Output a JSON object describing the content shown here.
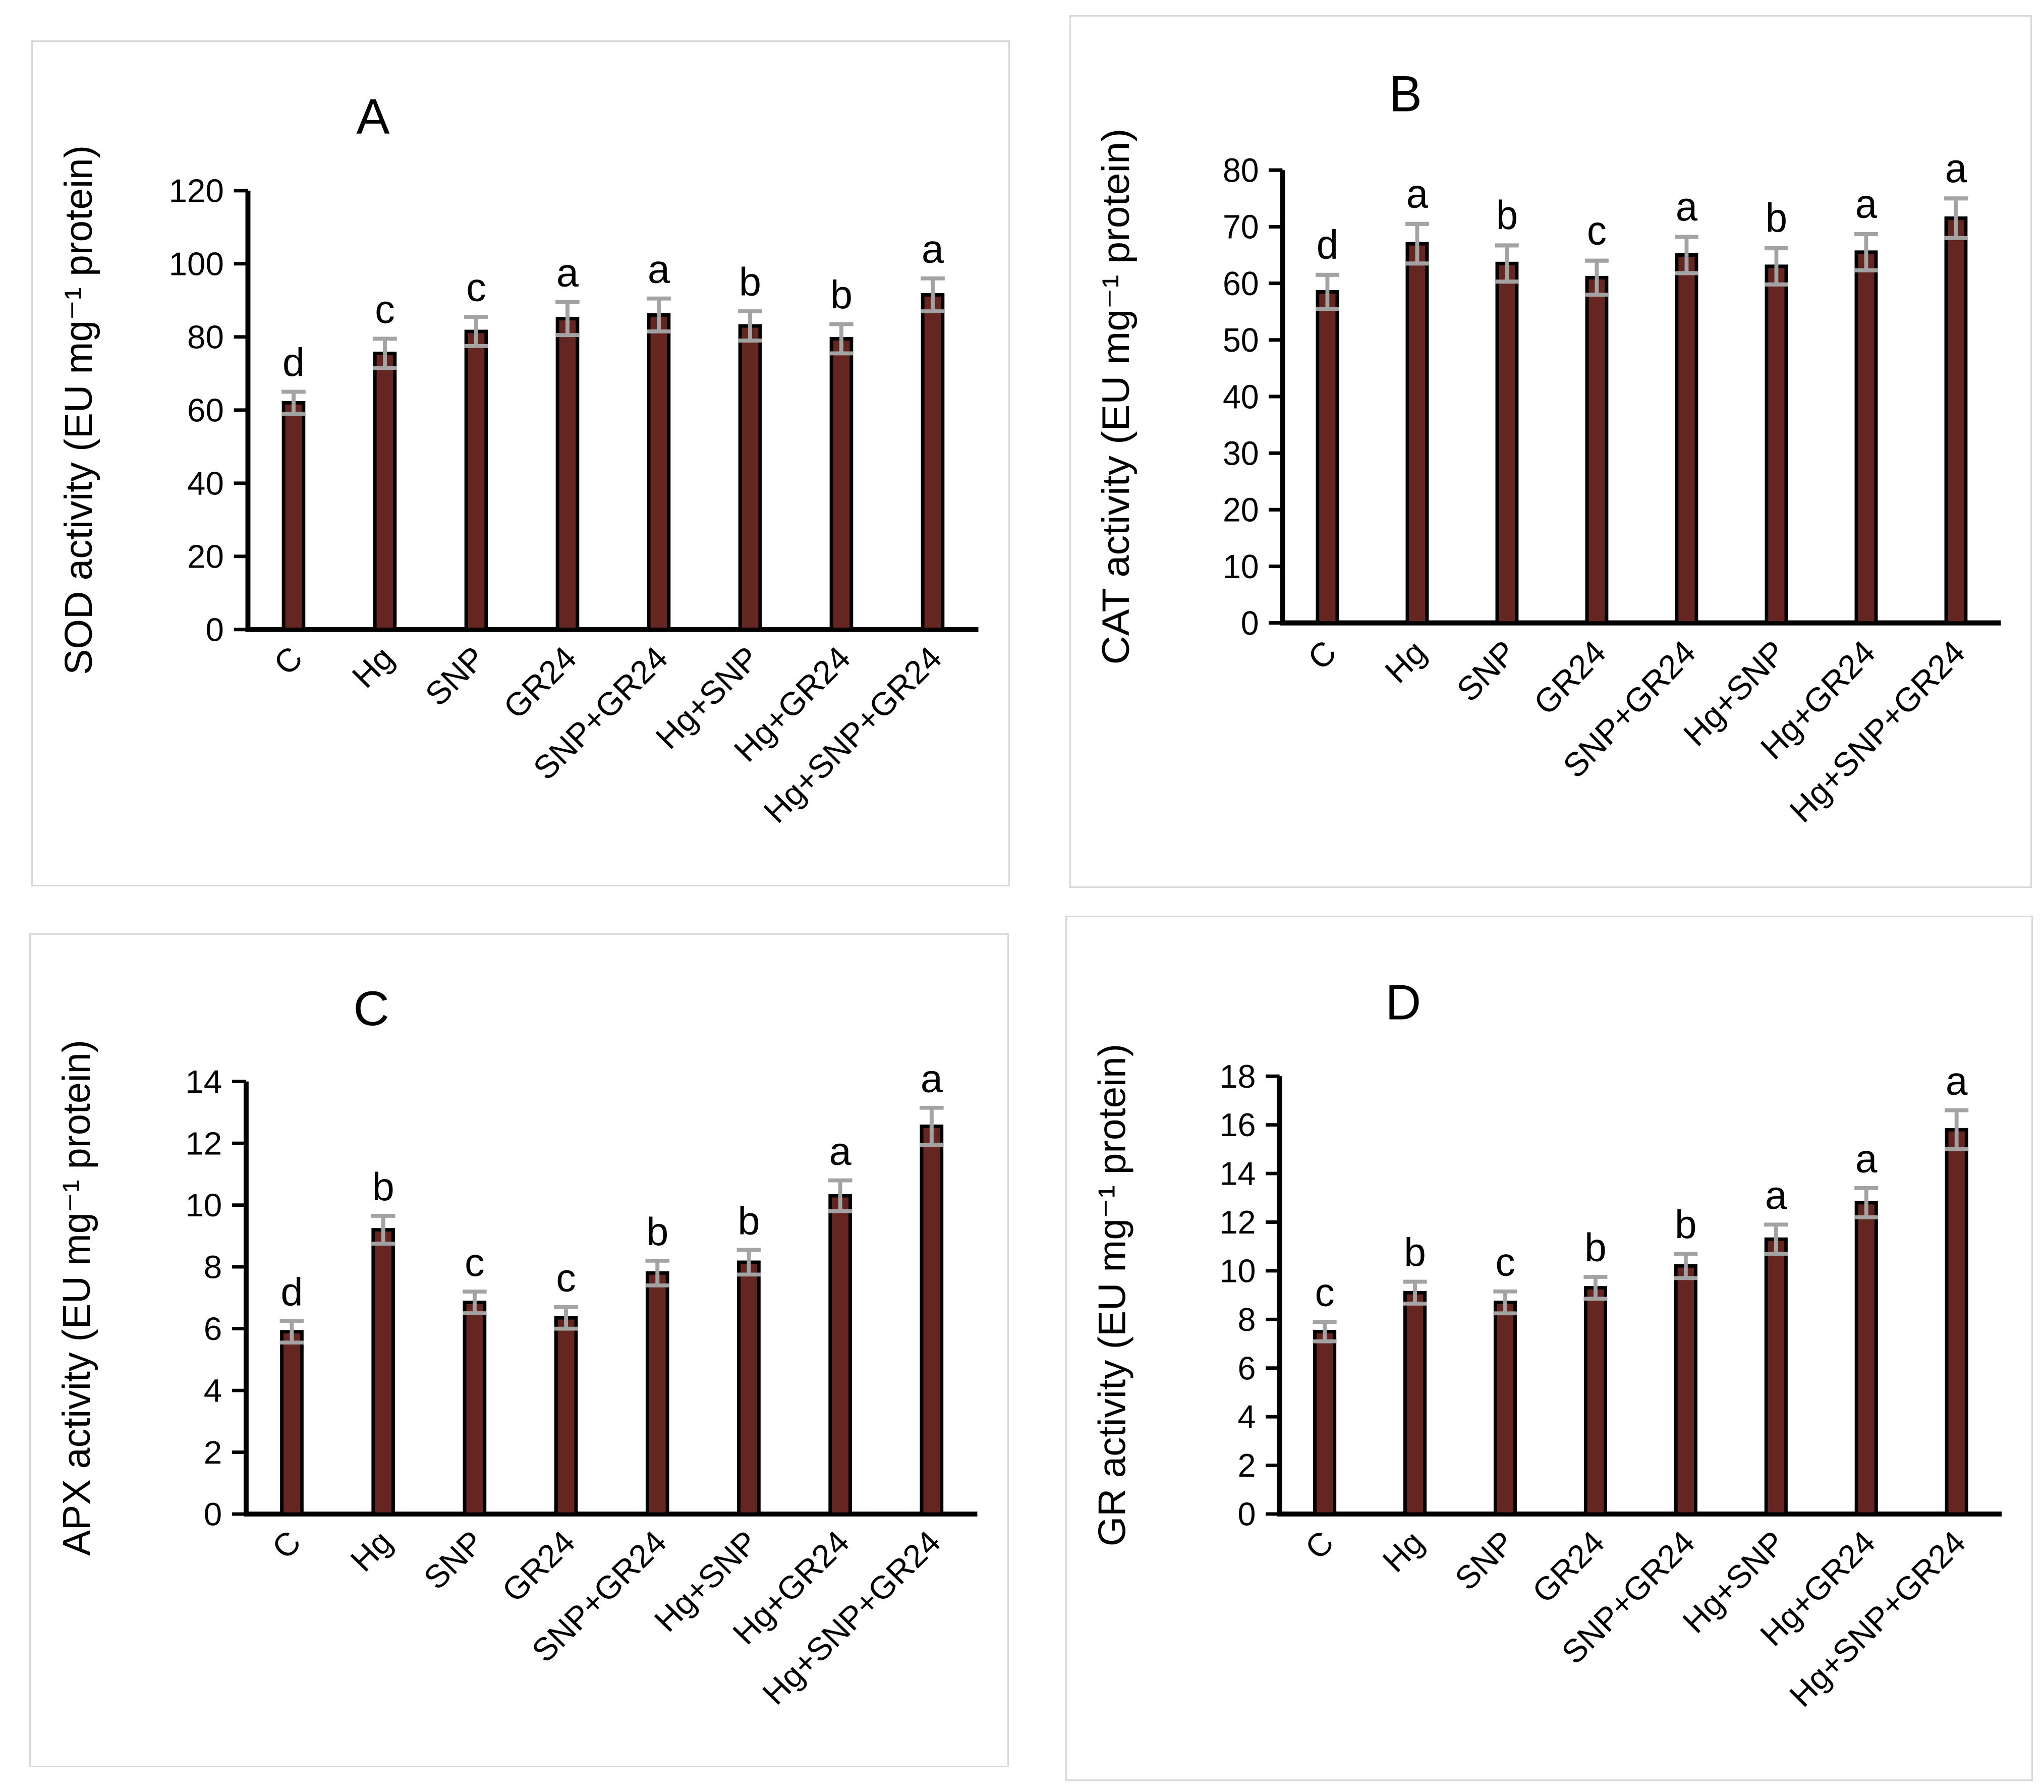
{
  "figure": {
    "background": "#ffffff",
    "panel_border_color": "#d9d9d9"
  },
  "colors": {
    "bar_fill": "#652622",
    "bar_border": "#000000",
    "error_bar": "#a3a3a3",
    "axis": "#000000",
    "text": "#000000"
  },
  "categories": [
    "C",
    "Hg",
    "SNP",
    "GR24",
    "SNP+GR24",
    "Hg+SNP",
    "Hg+GR24",
    "Hg+SNP+GR24"
  ],
  "chart_data": [
    {
      "type": "bar",
      "panel_label": "A",
      "title": "",
      "xlabel": "",
      "ylabel": "SOD activity  (EU mg⁻¹ protein)",
      "ylim": [
        0,
        120
      ],
      "ytick_step": 20,
      "ytick_labels": [
        "0",
        "20",
        "40",
        "60",
        "80",
        "100",
        "120"
      ],
      "grid": false,
      "legend": "none",
      "categories": [
        "C",
        "Hg",
        "SNP",
        "GR24",
        "SNP+GR24",
        "Hg+SNP",
        "Hg+GR24",
        "Hg+SNP+GR24"
      ],
      "values": [
        62,
        75.5,
        81.5,
        85,
        86,
        83,
        79.5,
        91.5
      ],
      "errors": [
        3,
        4,
        4,
        4.5,
        4.5,
        4,
        4,
        4.5
      ],
      "sig_letters": [
        "d",
        "c",
        "c",
        "a",
        "a",
        "b",
        "b",
        "a"
      ]
    },
    {
      "type": "bar",
      "panel_label": "B",
      "title": "",
      "xlabel": "",
      "ylabel": "CAT activity (EU mg⁻¹ protein)",
      "ylim": [
        0,
        80
      ],
      "ytick_step": 10,
      "ytick_labels": [
        "0",
        "10",
        "20",
        "30",
        "40",
        "50",
        "60",
        "70",
        "80"
      ],
      "grid": false,
      "legend": "none",
      "categories": [
        "C",
        "Hg",
        "SNP",
        "GR24",
        "SNP+GR24",
        "Hg+SNP",
        "Hg+GR24",
        "Hg+SNP+GR24"
      ],
      "values": [
        58.5,
        67,
        63.5,
        61,
        65,
        63,
        65.5,
        71.5
      ],
      "errors": [
        3,
        3.5,
        3.2,
        3,
        3.2,
        3.2,
        3.2,
        3.5
      ],
      "sig_letters": [
        "d",
        "a",
        "b",
        "c",
        "a",
        "b",
        "a",
        "a"
      ]
    },
    {
      "type": "bar",
      "panel_label": "C",
      "title": "",
      "xlabel": "",
      "ylabel": "APX activity (EU mg⁻¹ protein)",
      "ylim": [
        0,
        14
      ],
      "ytick_step": 2,
      "ytick_labels": [
        "0",
        "2",
        "4",
        "6",
        "8",
        "10",
        "12",
        "14"
      ],
      "grid": false,
      "legend": "none",
      "categories": [
        "C",
        "Hg",
        "SNP",
        "GR24",
        "SNP+GR24",
        "Hg+SNP",
        "Hg+GR24",
        "Hg+SNP+GR24"
      ],
      "values": [
        5.9,
        9.2,
        6.85,
        6.35,
        7.8,
        8.15,
        10.3,
        12.55
      ],
      "errors": [
        0.35,
        0.45,
        0.35,
        0.35,
        0.4,
        0.4,
        0.5,
        0.6
      ],
      "sig_letters": [
        "d",
        "b",
        "c",
        "c",
        "b",
        "b",
        "a",
        "a"
      ]
    },
    {
      "type": "bar",
      "panel_label": "D",
      "title": "",
      "xlabel": "",
      "ylabel": "GR activity (EU mg⁻¹ protein)",
      "ylim": [
        0,
        18
      ],
      "ytick_step": 2,
      "ytick_labels": [
        "0",
        "2",
        "4",
        "6",
        "8",
        "10",
        "12",
        "14",
        "16",
        "18"
      ],
      "grid": false,
      "legend": "none",
      "categories": [
        "C",
        "Hg",
        "SNP",
        "GR24",
        "SNP+GR24",
        "Hg+SNP",
        "Hg+GR24",
        "Hg+SNP+GR24"
      ],
      "values": [
        7.5,
        9.1,
        8.7,
        9.3,
        10.2,
        11.3,
        12.8,
        15.8
      ],
      "errors": [
        0.4,
        0.45,
        0.45,
        0.45,
        0.5,
        0.6,
        0.6,
        0.8
      ],
      "sig_letters": [
        "c",
        "b",
        "c",
        "b",
        "b",
        "a",
        "a",
        "a"
      ]
    }
  ]
}
